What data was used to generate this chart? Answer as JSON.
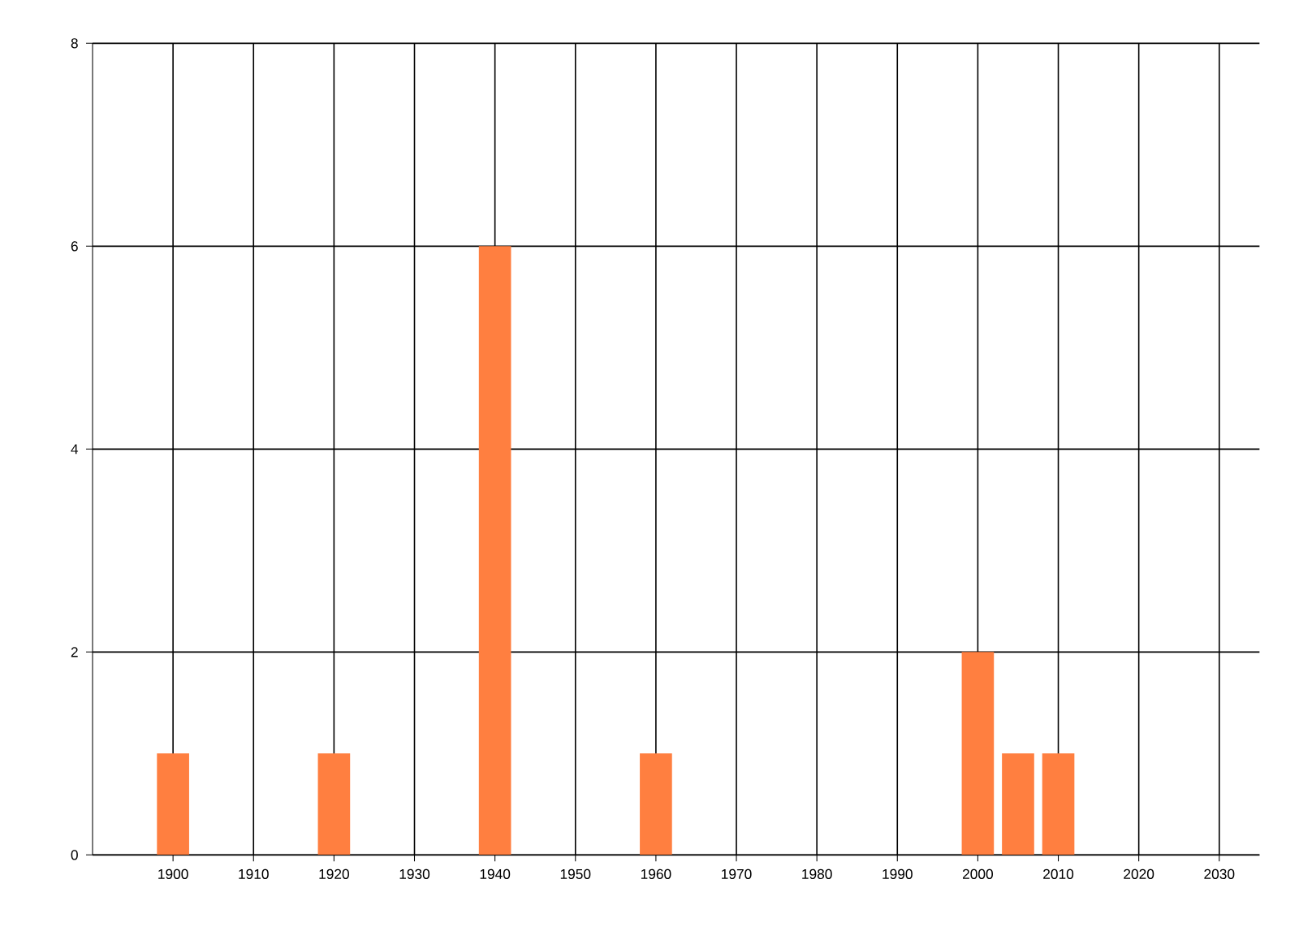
{
  "chart_data": {
    "type": "bar",
    "x": [
      1900,
      1920,
      1940,
      1960,
      2000,
      2005,
      2010
    ],
    "values": [
      1,
      1,
      6,
      1,
      2,
      1,
      1
    ],
    "color": "#ff7f40",
    "xlim": [
      1890,
      2035
    ],
    "xticks": [
      1900,
      1910,
      1920,
      1930,
      1940,
      1950,
      1960,
      1970,
      1980,
      1990,
      2000,
      2010,
      2020,
      2030
    ],
    "ylim": [
      0,
      8
    ],
    "yticks": [
      0,
      2,
      4,
      6,
      8
    ],
    "grid": true
  }
}
